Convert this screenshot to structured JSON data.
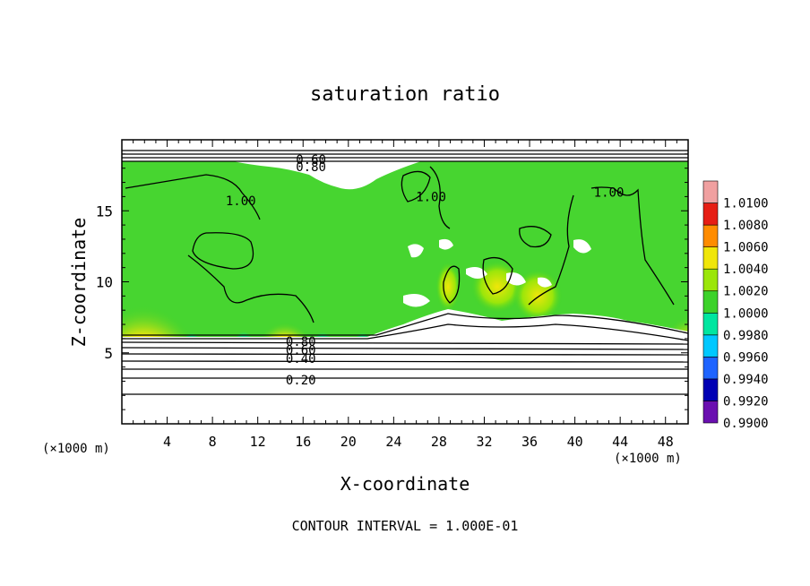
{
  "chart_data": {
    "type": "heatmap",
    "title": "saturation ratio",
    "xlabel": "X-coordinate",
    "ylabel": "Z-coordinate",
    "x_unit": "(×1000 m)",
    "xlim": [
      0,
      50
    ],
    "ylim": [
      0,
      20
    ],
    "x_ticks": [
      4,
      8,
      12,
      16,
      20,
      24,
      28,
      32,
      36,
      40,
      44,
      48
    ],
    "y_ticks": [
      5,
      10,
      15
    ],
    "colorbar": {
      "levels": [
        "0.9900",
        "0.9920",
        "0.9940",
        "0.9960",
        "0.9980",
        "1.0000",
        "1.0020",
        "1.0040",
        "1.0060",
        "1.0080",
        "1.0100"
      ],
      "colors": [
        "#6a0fb0",
        "#0000b4",
        "#1e64ff",
        "#00c8ff",
        "#00e6a0",
        "#3cd22a",
        "#9be60a",
        "#f0e60a",
        "#ff8c00",
        "#e61e14",
        "#f0a0a0"
      ]
    },
    "contour_labels": [
      {
        "text": "0.60",
        "x": 16.7,
        "z": 18.6
      },
      {
        "text": "0.80",
        "x": 16.7,
        "z": 18.1
      },
      {
        "text": "1.00",
        "x": 10.5,
        "z": 15.7
      },
      {
        "text": "1.00",
        "x": 27.3,
        "z": 16.0
      },
      {
        "text": "1.00",
        "x": 43.0,
        "z": 16.3
      },
      {
        "text": "0.80",
        "x": 15.8,
        "z": 5.8
      },
      {
        "text": "0.60",
        "x": 15.8,
        "z": 5.2
      },
      {
        "text": "0.40",
        "x": 15.8,
        "z": 4.6
      },
      {
        "text": "0.20",
        "x": 15.8,
        "z": 3.1
      }
    ],
    "contour_interval": "CONTOUR INTERVAL = 1.000E-01"
  }
}
